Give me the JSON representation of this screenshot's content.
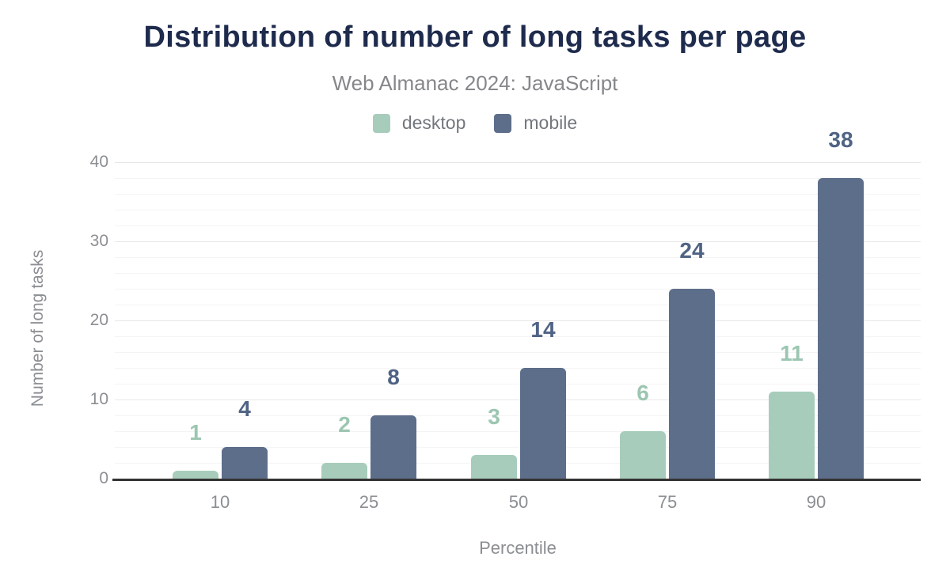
{
  "title": "Distribution of number of long tasks per page",
  "subtitle": "Web Almanac 2024: JavaScript",
  "chart_data": {
    "type": "bar",
    "categories": [
      "10",
      "25",
      "50",
      "75",
      "90"
    ],
    "series": [
      {
        "name": "desktop",
        "values": [
          1,
          2,
          3,
          6,
          11
        ],
        "bar_color": "#a8ccbb",
        "label_color": "#9cc6b1"
      },
      {
        "name": "mobile",
        "values": [
          4,
          8,
          14,
          24,
          38
        ],
        "bar_color": "#5d6e8a",
        "label_color": "#4f6384"
      }
    ],
    "title": "Distribution of number of long tasks per page",
    "subtitle": "Web Almanac 2024: JavaScript",
    "xlabel": "Percentile",
    "ylabel": "Number of long tasks",
    "ylim": [
      0,
      40
    ],
    "yticks": [
      0,
      10,
      20,
      30,
      40
    ],
    "minor_grid_step": 2,
    "grid": "on",
    "legend_position": "top",
    "value_labels": "above bars"
  },
  "colors": {
    "title": "#1e2b4d",
    "subtitle": "#85878a",
    "axis_text": "#8b8e92",
    "legend_text": "#73777d",
    "axis_line": "#333333",
    "grid_major": "#e8e8e8",
    "grid_minor": "#f4f4f4",
    "desktop": "#a8ccbb",
    "mobile": "#5d6e8a",
    "desktop_label": "#9cc6b1",
    "mobile_label": "#4f6384"
  }
}
